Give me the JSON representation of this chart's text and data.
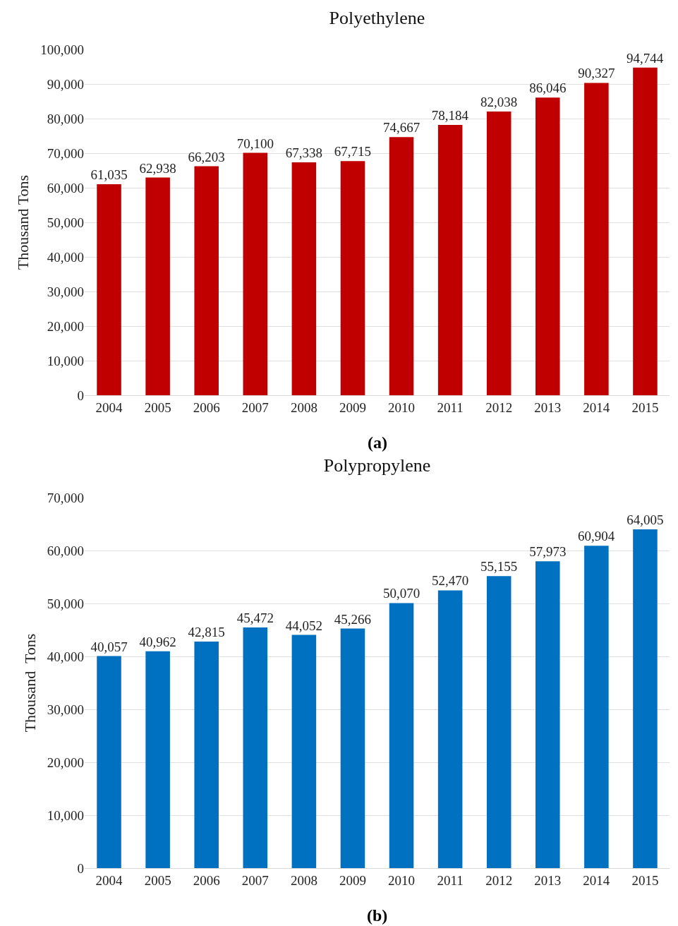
{
  "chart_data": [
    {
      "type": "bar",
      "title": "Polyethylene",
      "ylabel": "Thousand Tons",
      "categories": [
        "2004",
        "2005",
        "2006",
        "2007",
        "2008",
        "2009",
        "2010",
        "2011",
        "2012",
        "2013",
        "2014",
        "2015"
      ],
      "values": [
        61035,
        62938,
        66203,
        70100,
        67338,
        67715,
        74667,
        78184,
        82038,
        86046,
        90327,
        94744
      ],
      "value_labels": [
        "61,035",
        "62,938",
        "66,203",
        "70,100",
        "67,338",
        "67,715",
        "74,667",
        "78,184",
        "82,038",
        "86,046",
        "90,327",
        "94,744"
      ],
      "color": "#c00000",
      "ylim": [
        0,
        100000
      ],
      "yticks": [
        {
          "value": 0,
          "label": "0"
        },
        {
          "value": 10000,
          "label": "10,000"
        },
        {
          "value": 20000,
          "label": "20,000"
        },
        {
          "value": 30000,
          "label": "30,000"
        },
        {
          "value": 40000,
          "label": "40,000"
        },
        {
          "value": 50000,
          "label": "50,000"
        },
        {
          "value": 60000,
          "label": "60,000"
        },
        {
          "value": 70000,
          "label": "70,000"
        },
        {
          "value": 80000,
          "label": "80,000"
        },
        {
          "value": 90000,
          "label": "90,000"
        },
        {
          "value": 100000,
          "label": "100,000"
        }
      ],
      "grid": "y",
      "annotations": [
        "(a)"
      ]
    },
    {
      "type": "bar",
      "title": "Polypropylene",
      "ylabel": "Thousand  Tons",
      "categories": [
        "2004",
        "2005",
        "2006",
        "2007",
        "2008",
        "2009",
        "2010",
        "2011",
        "2012",
        "2013",
        "2014",
        "2015"
      ],
      "values": [
        40057,
        40962,
        42815,
        45472,
        44052,
        45266,
        50070,
        52470,
        55155,
        57973,
        60904,
        64005
      ],
      "value_labels": [
        "40,057",
        "40,962",
        "42,815",
        "45,472",
        "44,052",
        "45,266",
        "50,070",
        "52,470",
        "55,155",
        "57,973",
        "60,904",
        "64,005"
      ],
      "color": "#0070c0",
      "ylim": [
        0,
        70000
      ],
      "yticks": [
        {
          "value": 0,
          "label": "0"
        },
        {
          "value": 10000,
          "label": "10,000"
        },
        {
          "value": 20000,
          "label": "20,000"
        },
        {
          "value": 30000,
          "label": "30,000"
        },
        {
          "value": 40000,
          "label": "40,000"
        },
        {
          "value": 50000,
          "label": "50,000"
        },
        {
          "value": 60000,
          "label": "60,000"
        },
        {
          "value": 70000,
          "label": "70,000"
        }
      ],
      "grid": "y",
      "annotations": [
        "(b)"
      ]
    }
  ]
}
